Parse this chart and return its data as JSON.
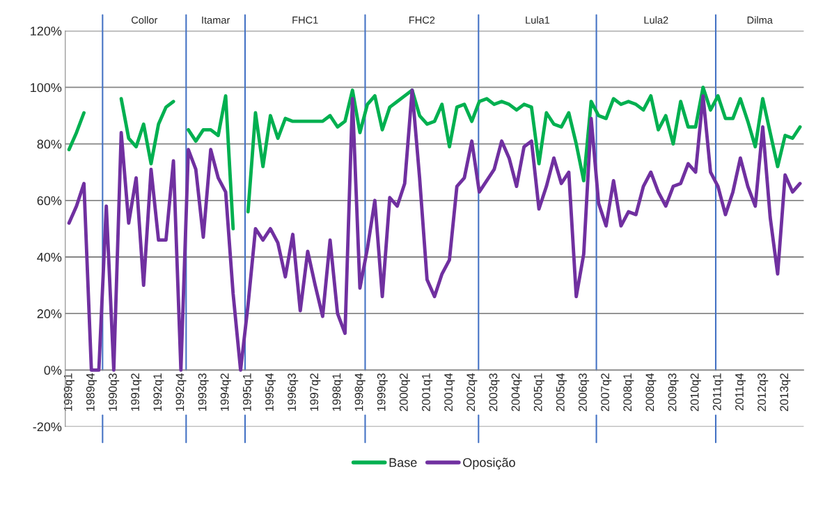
{
  "chart_data": {
    "type": "line",
    "categories": [
      "1989q1",
      null,
      null,
      "1989q4",
      null,
      null,
      "1990q3",
      null,
      null,
      "1991q2",
      null,
      null,
      "1992q1",
      null,
      null,
      "1992q4",
      null,
      null,
      "1993q3",
      null,
      null,
      "1994q2",
      null,
      null,
      "1995q1",
      null,
      null,
      "1995q4",
      null,
      null,
      "1996q3",
      null,
      null,
      "1997q2",
      null,
      null,
      "1998q1",
      null,
      null,
      "1998q4",
      null,
      null,
      "1999q3",
      null,
      null,
      "2000q2",
      null,
      null,
      "2001q1",
      null,
      null,
      "2001q4",
      null,
      null,
      "2002q4",
      null,
      null,
      "2003q3",
      null,
      null,
      "2004q2",
      null,
      null,
      "2005q1",
      null,
      null,
      "2005q4",
      null,
      null,
      "2006q3",
      null,
      null,
      "2007q2",
      null,
      null,
      "2008q1",
      null,
      null,
      "2008q4",
      null,
      null,
      "2009q3",
      null,
      null,
      "2010q2",
      null,
      null,
      "2011q1",
      null,
      null,
      "2011q4",
      null,
      null,
      "2012q3",
      null,
      null,
      "2013q2",
      null,
      null
    ],
    "series": [
      {
        "name": "Base",
        "color": "#00b050",
        "values": [
          78,
          84,
          91,
          null,
          null,
          null,
          null,
          96,
          82,
          79,
          87,
          73,
          87,
          93,
          95,
          null,
          85,
          81,
          85,
          85,
          83,
          97,
          50,
          null,
          56,
          91,
          72,
          90,
          82,
          89,
          88,
          88,
          88,
          88,
          88,
          90,
          86,
          88,
          99,
          84,
          94,
          97,
          85,
          93,
          95,
          97,
          99,
          90,
          87,
          88,
          94,
          79,
          93,
          94,
          88,
          95,
          96,
          94,
          95,
          94,
          92,
          94,
          93,
          73,
          91,
          87,
          86,
          91,
          80,
          67,
          95,
          90,
          89,
          96,
          94,
          95,
          94,
          92,
          97,
          85,
          90,
          80,
          95,
          86,
          86,
          100,
          92,
          97,
          89,
          89,
          96,
          88,
          79,
          96,
          84,
          72,
          83,
          82,
          86
        ]
      },
      {
        "name": "Oposição",
        "color": "#7030a0",
        "values": [
          52,
          58,
          66,
          0,
          0,
          58,
          0,
          84,
          52,
          68,
          30,
          71,
          46,
          46,
          74,
          0,
          78,
          71,
          47,
          78,
          68,
          63,
          27,
          0,
          23,
          50,
          46,
          50,
          45,
          33,
          48,
          21,
          42,
          30,
          19,
          46,
          20,
          13,
          96,
          29,
          43,
          60,
          26,
          61,
          58,
          66,
          99,
          68,
          32,
          26,
          34,
          39,
          65,
          68,
          81,
          63,
          67,
          71,
          81,
          75,
          65,
          79,
          81,
          57,
          65,
          75,
          66,
          70,
          26,
          41,
          89,
          59,
          51,
          67,
          51,
          56,
          55,
          65,
          70,
          63,
          58,
          65,
          66,
          73,
          70,
          97,
          70,
          65,
          55,
          63,
          75,
          65,
          58,
          86,
          54,
          34,
          69,
          63,
          66
        ]
      }
    ],
    "ylim": [
      -20,
      120
    ],
    "yticks": [
      {
        "value": -20,
        "label": "-20%"
      },
      {
        "value": 0,
        "label": "0%"
      },
      {
        "value": 20,
        "label": "20%"
      },
      {
        "value": 40,
        "label": "40%"
      },
      {
        "value": 60,
        "label": "60%"
      },
      {
        "value": 80,
        "label": "80%"
      },
      {
        "value": 100,
        "label": "100%"
      },
      {
        "value": 120,
        "label": "120%"
      }
    ],
    "annotations": [
      "Collor",
      "Itamar",
      "FHC1",
      "FHC2",
      "Lula1",
      "Lula2",
      "Dilma"
    ],
    "grid": "y",
    "legend": "bottom",
    "marker": "none",
    "line_style": "solid"
  }
}
